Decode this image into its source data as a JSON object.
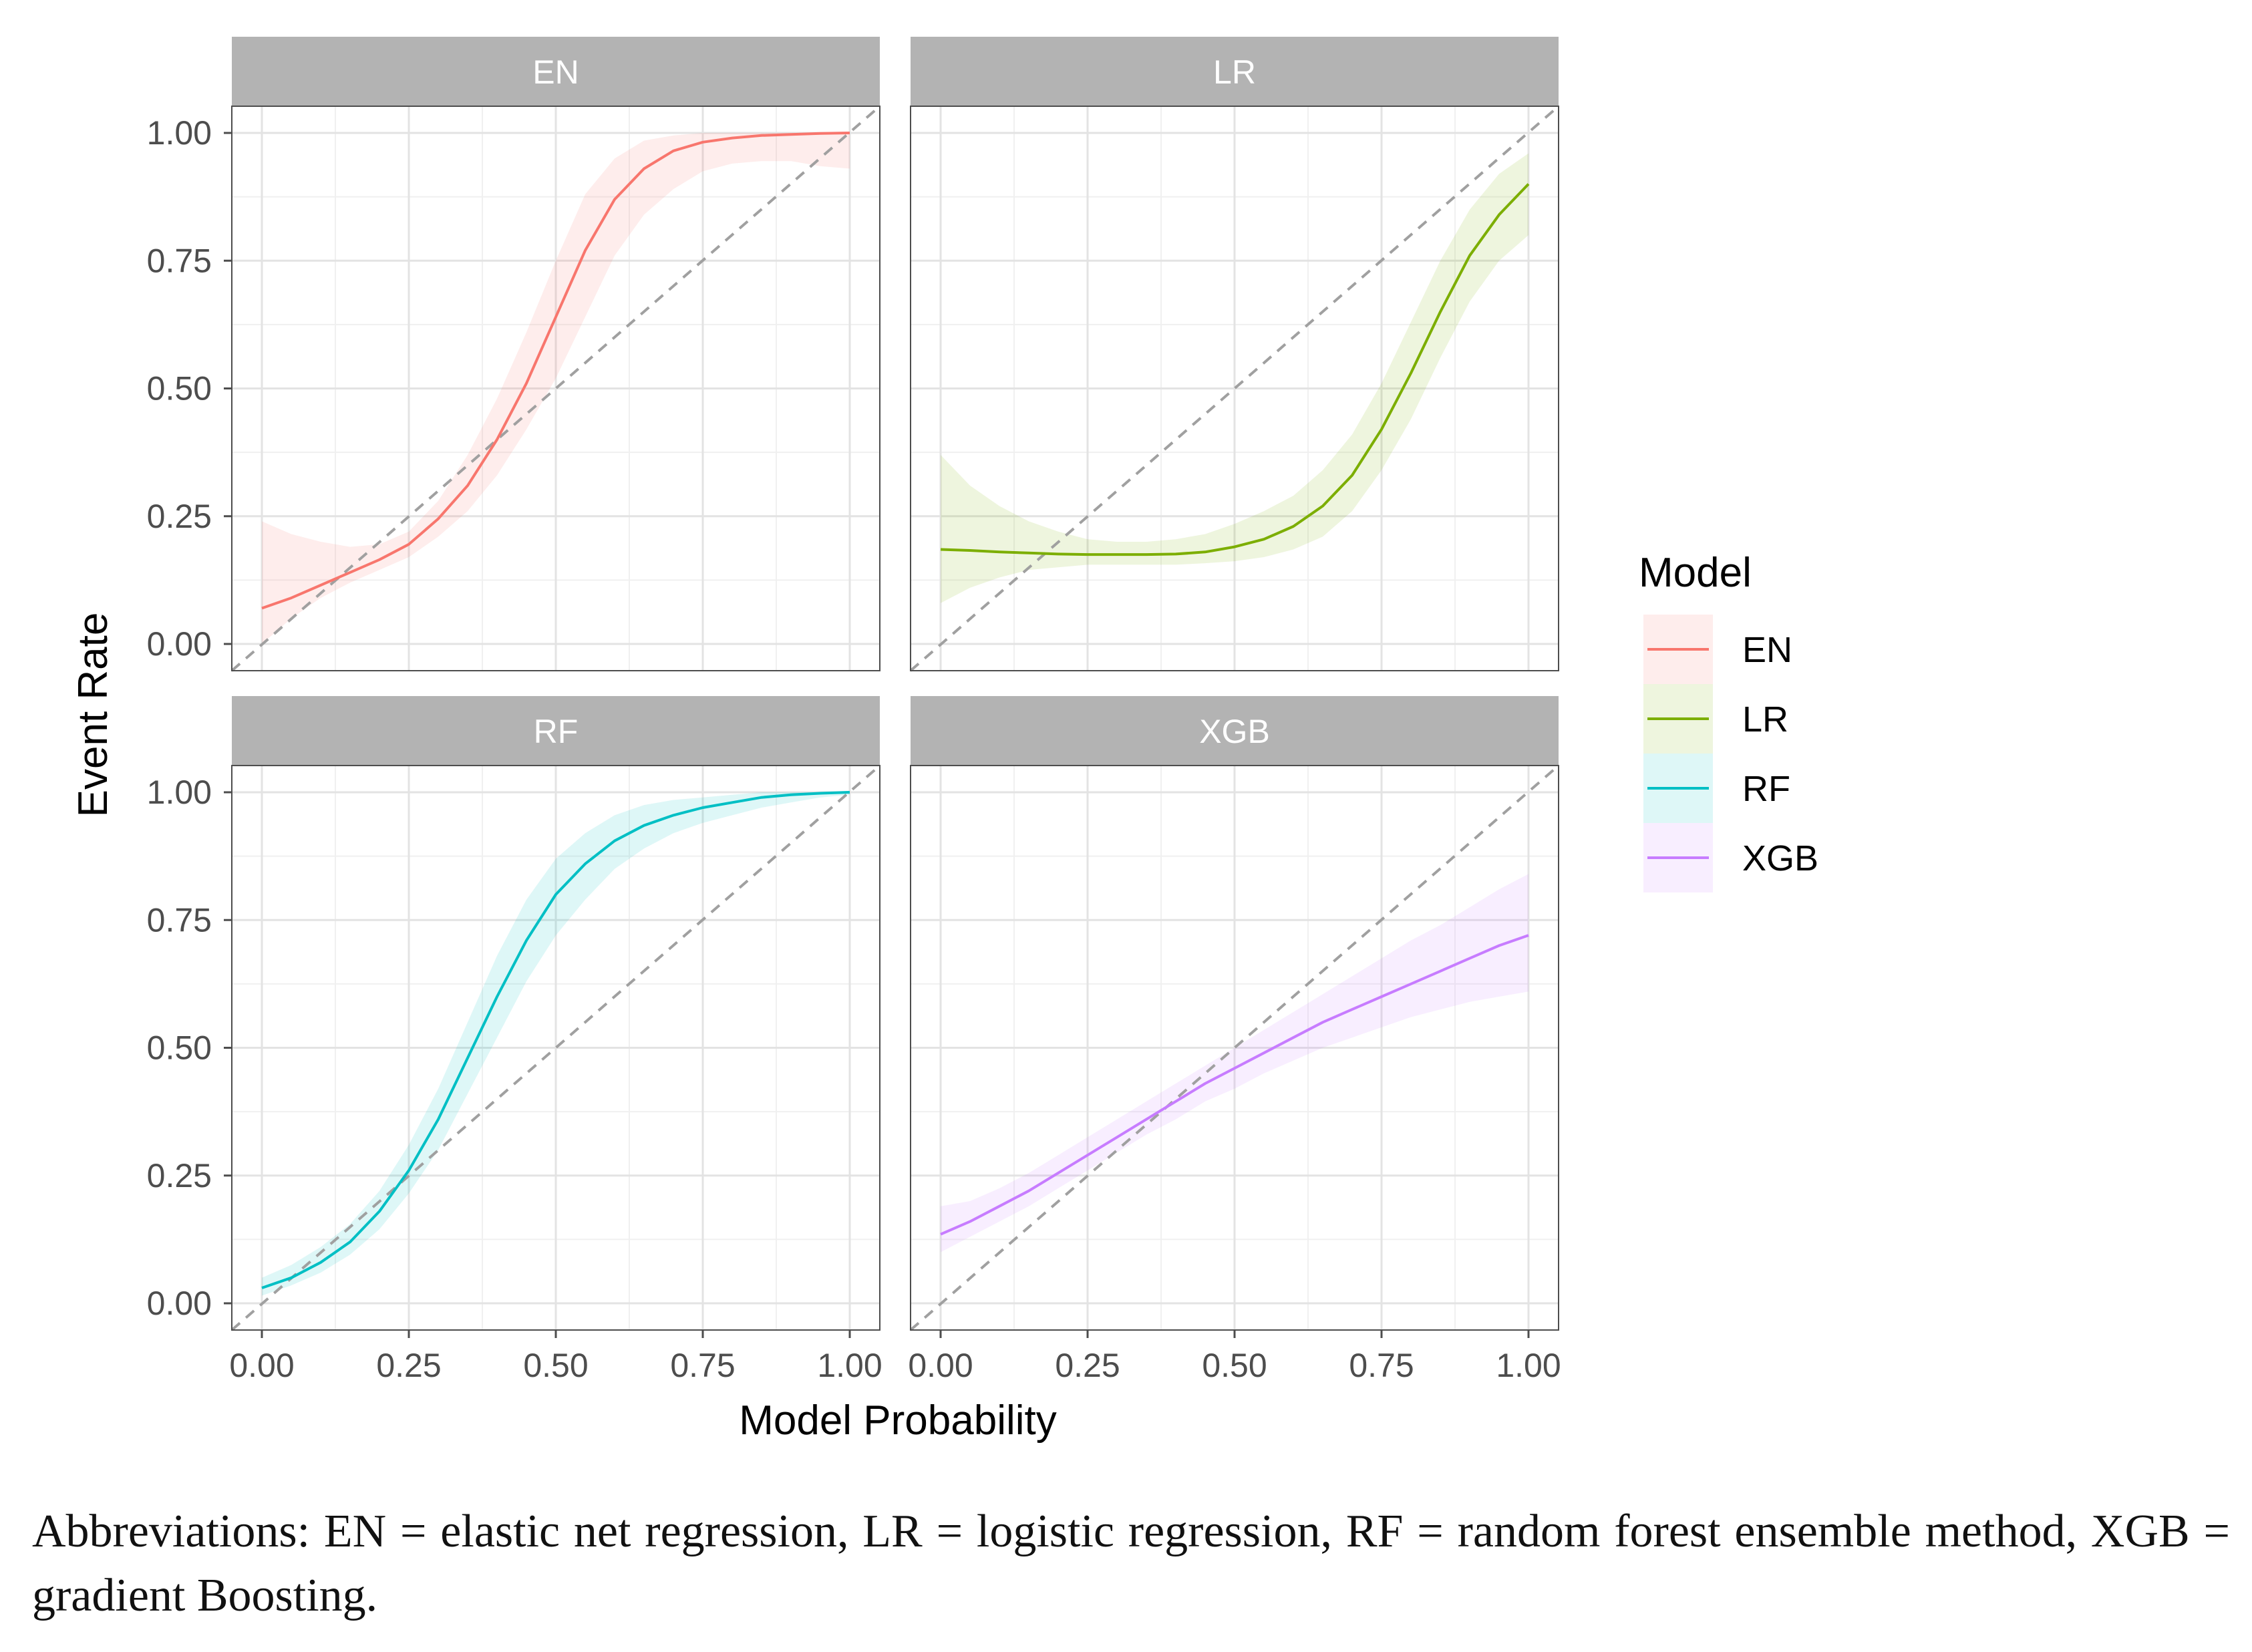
{
  "chart_data": {
    "type": "line",
    "layout": "facet-grid-2x2",
    "xlabel": "Model Probability",
    "ylabel": "Event Rate",
    "xlim": [
      0,
      1
    ],
    "ylim": [
      0,
      1
    ],
    "x_ticks": [
      "0.00",
      "0.25",
      "0.50",
      "0.75",
      "1.00"
    ],
    "y_ticks": [
      "0.00",
      "0.25",
      "0.50",
      "0.75",
      "1.00"
    ],
    "reference_line": "y = x (dashed)",
    "legend": {
      "title": "Model",
      "position": "right",
      "items": [
        {
          "label": "EN",
          "color": "#F8766D"
        },
        {
          "label": "LR",
          "color": "#7CAE00"
        },
        {
          "label": "RF",
          "color": "#00BFC4"
        },
        {
          "label": "XGB",
          "color": "#C77CFF"
        }
      ]
    },
    "panels": [
      {
        "title": "EN",
        "color": "#F8766D",
        "x": [
          0,
          0.05,
          0.1,
          0.15,
          0.2,
          0.25,
          0.3,
          0.35,
          0.4,
          0.45,
          0.5,
          0.55,
          0.6,
          0.65,
          0.7,
          0.75,
          0.8,
          0.85,
          0.9,
          0.95,
          1.0
        ],
        "y": [
          0.07,
          0.09,
          0.115,
          0.14,
          0.165,
          0.195,
          0.245,
          0.31,
          0.4,
          0.51,
          0.64,
          0.77,
          0.87,
          0.93,
          0.965,
          0.982,
          0.99,
          0.995,
          0.997,
          0.999,
          1.0
        ],
        "lower": [
          0.0,
          0.05,
          0.09,
          0.12,
          0.145,
          0.17,
          0.21,
          0.26,
          0.33,
          0.42,
          0.52,
          0.64,
          0.76,
          0.84,
          0.89,
          0.925,
          0.94,
          0.945,
          0.945,
          0.935,
          0.93
        ],
        "upper": [
          0.24,
          0.215,
          0.2,
          0.19,
          0.195,
          0.22,
          0.28,
          0.37,
          0.48,
          0.61,
          0.75,
          0.88,
          0.95,
          0.985,
          0.995,
          1.0,
          1.0,
          1.0,
          1.0,
          1.0,
          1.0
        ]
      },
      {
        "title": "LR",
        "color": "#7CAE00",
        "x": [
          0,
          0.05,
          0.1,
          0.15,
          0.2,
          0.25,
          0.3,
          0.35,
          0.4,
          0.45,
          0.5,
          0.55,
          0.6,
          0.65,
          0.7,
          0.75,
          0.8,
          0.85,
          0.9,
          0.95,
          1.0
        ],
        "y": [
          0.185,
          0.183,
          0.18,
          0.178,
          0.176,
          0.175,
          0.175,
          0.175,
          0.176,
          0.18,
          0.19,
          0.205,
          0.23,
          0.27,
          0.33,
          0.42,
          0.53,
          0.65,
          0.76,
          0.84,
          0.9
        ],
        "lower": [
          0.08,
          0.11,
          0.13,
          0.145,
          0.15,
          0.155,
          0.155,
          0.155,
          0.155,
          0.158,
          0.162,
          0.17,
          0.185,
          0.21,
          0.26,
          0.34,
          0.44,
          0.56,
          0.67,
          0.75,
          0.8
        ],
        "upper": [
          0.37,
          0.31,
          0.27,
          0.24,
          0.22,
          0.205,
          0.2,
          0.2,
          0.205,
          0.215,
          0.235,
          0.26,
          0.29,
          0.34,
          0.41,
          0.51,
          0.63,
          0.75,
          0.85,
          0.92,
          0.96
        ]
      },
      {
        "title": "RF",
        "color": "#00BFC4",
        "x": [
          0,
          0.05,
          0.1,
          0.15,
          0.2,
          0.25,
          0.3,
          0.35,
          0.4,
          0.45,
          0.5,
          0.55,
          0.6,
          0.65,
          0.7,
          0.75,
          0.8,
          0.85,
          0.9,
          0.95,
          1.0
        ],
        "y": [
          0.03,
          0.05,
          0.08,
          0.12,
          0.18,
          0.26,
          0.36,
          0.48,
          0.6,
          0.71,
          0.8,
          0.86,
          0.905,
          0.935,
          0.955,
          0.97,
          0.98,
          0.99,
          0.995,
          0.998,
          1.0
        ],
        "lower": [
          0.015,
          0.035,
          0.06,
          0.095,
          0.145,
          0.215,
          0.3,
          0.41,
          0.52,
          0.63,
          0.72,
          0.79,
          0.85,
          0.89,
          0.92,
          0.94,
          0.955,
          0.97,
          0.98,
          0.99,
          0.995
        ],
        "upper": [
          0.05,
          0.075,
          0.11,
          0.155,
          0.22,
          0.31,
          0.42,
          0.55,
          0.68,
          0.79,
          0.87,
          0.92,
          0.955,
          0.975,
          0.985,
          0.99,
          0.995,
          1.0,
          1.0,
          1.0,
          1.0
        ]
      },
      {
        "title": "XGB",
        "color": "#C77CFF",
        "x": [
          0,
          0.05,
          0.1,
          0.15,
          0.2,
          0.25,
          0.3,
          0.35,
          0.4,
          0.45,
          0.5,
          0.55,
          0.6,
          0.65,
          0.7,
          0.75,
          0.8,
          0.85,
          0.9,
          0.95,
          1.0
        ],
        "y": [
          0.135,
          0.16,
          0.19,
          0.22,
          0.255,
          0.29,
          0.325,
          0.36,
          0.395,
          0.43,
          0.46,
          0.49,
          0.52,
          0.55,
          0.575,
          0.6,
          0.625,
          0.65,
          0.675,
          0.7,
          0.72
        ],
        "lower": [
          0.1,
          0.13,
          0.16,
          0.19,
          0.225,
          0.26,
          0.295,
          0.33,
          0.36,
          0.395,
          0.42,
          0.45,
          0.475,
          0.5,
          0.52,
          0.54,
          0.56,
          0.575,
          0.59,
          0.6,
          0.61
        ],
        "upper": [
          0.19,
          0.2,
          0.225,
          0.255,
          0.29,
          0.325,
          0.36,
          0.395,
          0.43,
          0.465,
          0.5,
          0.535,
          0.57,
          0.605,
          0.64,
          0.675,
          0.71,
          0.74,
          0.775,
          0.81,
          0.84
        ]
      }
    ]
  },
  "caption": "Abbreviations: EN = elastic net regression, LR = logistic regression, RF = random forest ensemble method, XGB = gradient Boosting."
}
